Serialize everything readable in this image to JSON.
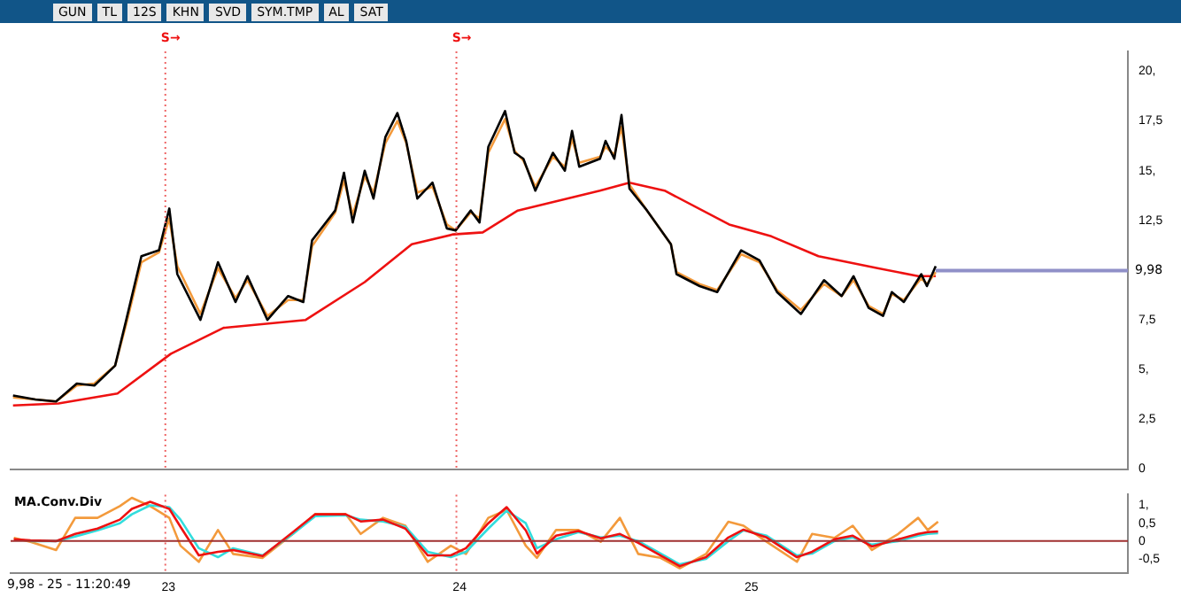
{
  "chart_data": [
    {
      "type": "line",
      "annotations": [
        "GUN",
        "TL",
        "12S",
        "KHN",
        "SVD",
        "SYM.TMP",
        "AL",
        "SAT"
      ],
      "x": [
        "2022-06-20",
        "2022-07-18",
        "2022-08-13",
        "2022-09-08",
        "2022-09-30",
        "2022-10-26",
        "2022-11-09",
        "2022-11-28",
        "2022-12-20",
        "2023-01-02",
        "2023-01-12",
        "2023-02-10",
        "2023-03-04",
        "2023-03-26",
        "2023-04-10",
        "2023-05-05",
        "2023-05-31",
        "2023-06-19",
        "2023-06-30",
        "2023-07-29",
        "2023-08-09",
        "2023-08-20",
        "2023-09-04",
        "2023-09-15",
        "2023-09-30",
        "2023-10-15",
        "2023-10-26",
        "2023-11-09",
        "2023-11-28",
        "2023-12-16",
        "2023-12-27",
        "2024-01-15",
        "2024-01-26",
        "2024-02-06",
        "2024-02-27",
        "2024-03-10",
        "2024-03-21",
        "2024-04-05",
        "2024-04-27",
        "2024-05-12",
        "2024-05-21",
        "2024-05-30",
        "2024-06-25",
        "2024-07-02",
        "2024-07-13",
        "2024-07-22",
        "2024-08-01",
        "2024-08-23",
        "2024-09-22",
        "2024-09-29",
        "2024-10-28",
        "2024-11-19",
        "2024-12-19",
        "2025-01-11",
        "2025-02-02",
        "2025-03-04",
        "2025-04-02",
        "2025-04-24",
        "2025-05-09",
        "2025-05-28",
        "2025-06-15",
        "2025-06-26",
        "2025-07-11",
        "2025-08-02",
        "2025-08-09",
        "2025-08-20"
      ],
      "series": [
        {
          "color": "#000000",
          "values": [
            3.7,
            3.5,
            3.4,
            4.3,
            4.2,
            5.2,
            7.5,
            10.7,
            11.0,
            13.1,
            9.8,
            7.5,
            10.4,
            8.4,
            9.7,
            7.5,
            8.7,
            8.4,
            11.5,
            13.0,
            14.9,
            12.4,
            15.0,
            13.6,
            16.7,
            17.9,
            16.5,
            13.6,
            14.4,
            12.1,
            12.0,
            13.0,
            12.4,
            16.2,
            18.0,
            15.9,
            15.6,
            14.0,
            15.9,
            15.0,
            17.0,
            15.2,
            15.6,
            16.5,
            15.6,
            17.8,
            14.1,
            13.0,
            11.3,
            9.8,
            9.2,
            8.9,
            11.0,
            10.5,
            8.9,
            7.8,
            9.5,
            8.7,
            9.7,
            8.1,
            7.7,
            8.9,
            8.4,
            9.8,
            9.2,
            10.2
          ]
        },
        {
          "color": "#f39a3c",
          "values": [
            3.6,
            3.5,
            3.4,
            4.2,
            4.3,
            5.2,
            7.3,
            10.4,
            10.9,
            12.6,
            10.2,
            7.8,
            10.1,
            8.6,
            9.5,
            7.7,
            8.5,
            8.5,
            11.2,
            12.9,
            14.5,
            12.8,
            14.7,
            13.9,
            16.4,
            17.5,
            16.4,
            13.9,
            14.2,
            12.3,
            12.0,
            12.9,
            12.6,
            15.9,
            17.6,
            16.0,
            15.5,
            14.2,
            15.7,
            15.2,
            16.6,
            15.4,
            15.7,
            16.2,
            15.8,
            17.2,
            14.3,
            13.0,
            11.3,
            9.9,
            9.3,
            9.0,
            10.8,
            10.4,
            9.0,
            8.0,
            9.3,
            8.7,
            9.5,
            8.2,
            7.8,
            8.8,
            8.5,
            9.6,
            9.3,
            9.9
          ]
        },
        {
          "color": "#ee1111",
          "x": [
            "2022-06-20",
            "2022-08-16",
            "2022-10-29",
            "2023-01-04",
            "2023-03-11",
            "2023-06-22",
            "2023-09-04",
            "2023-11-02",
            "2023-12-24",
            "2024-01-30",
            "2024-03-14",
            "2024-06-25",
            "2024-08-01",
            "2024-09-14",
            "2024-12-04",
            "2025-01-26",
            "2025-03-26",
            "2025-06-08",
            "2025-07-29",
            "2025-08-20"
          ],
          "values": [
            3.2,
            3.3,
            3.8,
            5.8,
            7.1,
            7.5,
            9.4,
            11.3,
            11.8,
            11.9,
            13.0,
            14.0,
            14.4,
            14.0,
            12.3,
            11.7,
            10.7,
            10.1,
            9.7,
            9.7
          ]
        }
      ],
      "xlim": [
        "2022-06-17",
        "2026-04-18"
      ],
      "ylim": [
        0,
        21
      ],
      "yticks": [
        0,
        {
          "value": 2.5,
          "label": "2,5"
        },
        {
          "value": 5,
          "label": "5,"
        },
        {
          "value": 7.5,
          "label": "7,5"
        },
        {
          "value": 12.5,
          "label": "12,5"
        },
        {
          "value": 15,
          "label": "15,"
        },
        {
          "value": 17.5,
          "label": "17,5"
        },
        {
          "value": 20,
          "label": "20,"
        }
      ],
      "ref_lines": [
        {
          "axis": "x",
          "value": "2022-12-28",
          "label": "S→",
          "color": "#ee6666",
          "line_style": "dotted"
        },
        {
          "axis": "x",
          "value": "2023-12-28",
          "label": "S→",
          "color": "#ee6666",
          "line_style": "dotted"
        },
        {
          "axis": "y",
          "value": 9.98,
          "label": "9,98",
          "color": "#9090c8"
        }
      ],
      "tick_labels": "y"
    },
    {
      "type": "line",
      "title": "MA.Conv.Div",
      "annotations": [
        "9,98 - 25 - 11:20:49"
      ],
      "x": [
        "2022-06-21",
        "2022-07-12",
        "2022-08-13",
        "2022-09-06",
        "2022-10-04",
        "2022-11-01",
        "2022-11-16",
        "2022-12-09",
        "2023-01-02",
        "2023-01-16",
        "2023-02-08",
        "2023-03-04",
        "2023-03-23",
        "2023-04-29",
        "2023-06-06",
        "2023-07-04",
        "2023-08-11",
        "2023-08-30",
        "2023-09-27",
        "2023-10-25",
        "2023-11-22",
        "2023-12-21",
        "2024-01-09",
        "2024-02-06",
        "2024-02-29",
        "2024-03-24",
        "2024-04-07",
        "2024-05-01",
        "2024-05-29",
        "2024-06-26",
        "2024-07-20",
        "2024-08-12",
        "2024-09-09",
        "2024-10-03",
        "2024-11-05",
        "2024-12-03",
        "2024-12-22",
        "2025-01-20",
        "2025-02-27",
        "2025-03-18",
        "2025-04-15",
        "2025-05-08",
        "2025-06-01",
        "2025-07-04",
        "2025-07-29",
        "2025-08-10",
        "2025-08-23"
      ],
      "series": [
        {
          "color": "#ee1111",
          "values": [
            0.05,
            0.02,
            0.0,
            0.2,
            0.35,
            0.6,
            0.9,
            1.1,
            0.9,
            0.4,
            -0.4,
            -0.3,
            -0.25,
            -0.42,
            0.25,
            0.75,
            0.75,
            0.55,
            0.6,
            0.35,
            -0.4,
            -0.4,
            -0.2,
            0.5,
            0.95,
            0.3,
            -0.35,
            0.15,
            0.28,
            0.08,
            0.2,
            -0.05,
            -0.4,
            -0.7,
            -0.45,
            0.1,
            0.32,
            0.1,
            -0.45,
            -0.3,
            0.05,
            0.15,
            -0.15,
            0.05,
            0.2,
            0.25,
            0.27
          ]
        },
        {
          "color": "#33dddd",
          "values": [
            null,
            0.0,
            0.0,
            0.13,
            0.3,
            0.5,
            0.75,
            1.0,
            0.95,
            0.6,
            -0.2,
            -0.45,
            -0.2,
            -0.4,
            0.2,
            0.7,
            0.72,
            0.6,
            0.55,
            0.4,
            -0.3,
            -0.45,
            -0.3,
            0.35,
            0.85,
            0.5,
            -0.2,
            0.05,
            0.25,
            0.1,
            0.15,
            0.0,
            -0.35,
            -0.65,
            -0.5,
            0.0,
            0.3,
            0.15,
            -0.4,
            -0.35,
            0.0,
            0.1,
            -0.1,
            0.0,
            0.15,
            0.2,
            0.22
          ]
        },
        {
          "color": "#f39a3c",
          "values": [
            0.09,
            -0.02,
            -0.25,
            0.65,
            0.65,
            0.98,
            1.21,
            0.98,
            0.65,
            -0.13,
            -0.58,
            0.31,
            -0.36,
            -0.47,
            0.2,
            0.76,
            0.76,
            0.2,
            0.65,
            0.43,
            -0.58,
            -0.13,
            -0.36,
            0.65,
            0.87,
            -0.13,
            -0.47,
            0.31,
            0.31,
            -0.02,
            0.65,
            -0.36,
            -0.47,
            -0.76,
            -0.36,
            0.54,
            0.43,
            -0.02,
            -0.58,
            0.2,
            0.09,
            0.43,
            -0.25,
            0.2,
            0.65,
            0.31,
            0.54
          ]
        }
      ],
      "xlim": [
        "2022-06-17",
        "2026-04-18"
      ],
      "xticks": [
        {
          "value": "2023-01-01",
          "label": "23"
        },
        {
          "value": "2024-01-01",
          "label": "24"
        },
        {
          "value": "2025-01-01",
          "label": "25"
        }
      ],
      "ylim": [
        -0.9,
        1.3
      ],
      "yticks": [
        {
          "value": -0.5,
          "label": "-0,5"
        },
        0,
        {
          "value": 0.5,
          "label": "0,5"
        },
        {
          "value": 1,
          "label": "1,"
        }
      ],
      "ref_lines": [
        {
          "axis": "x",
          "value": "2022-12-28",
          "color": "#ee6666",
          "line_style": "dotted"
        },
        {
          "axis": "x",
          "value": "2023-12-28",
          "color": "#ee6666",
          "line_style": "dotted"
        },
        {
          "axis": "y",
          "value": 0,
          "color": "#a03030"
        }
      ]
    }
  ]
}
